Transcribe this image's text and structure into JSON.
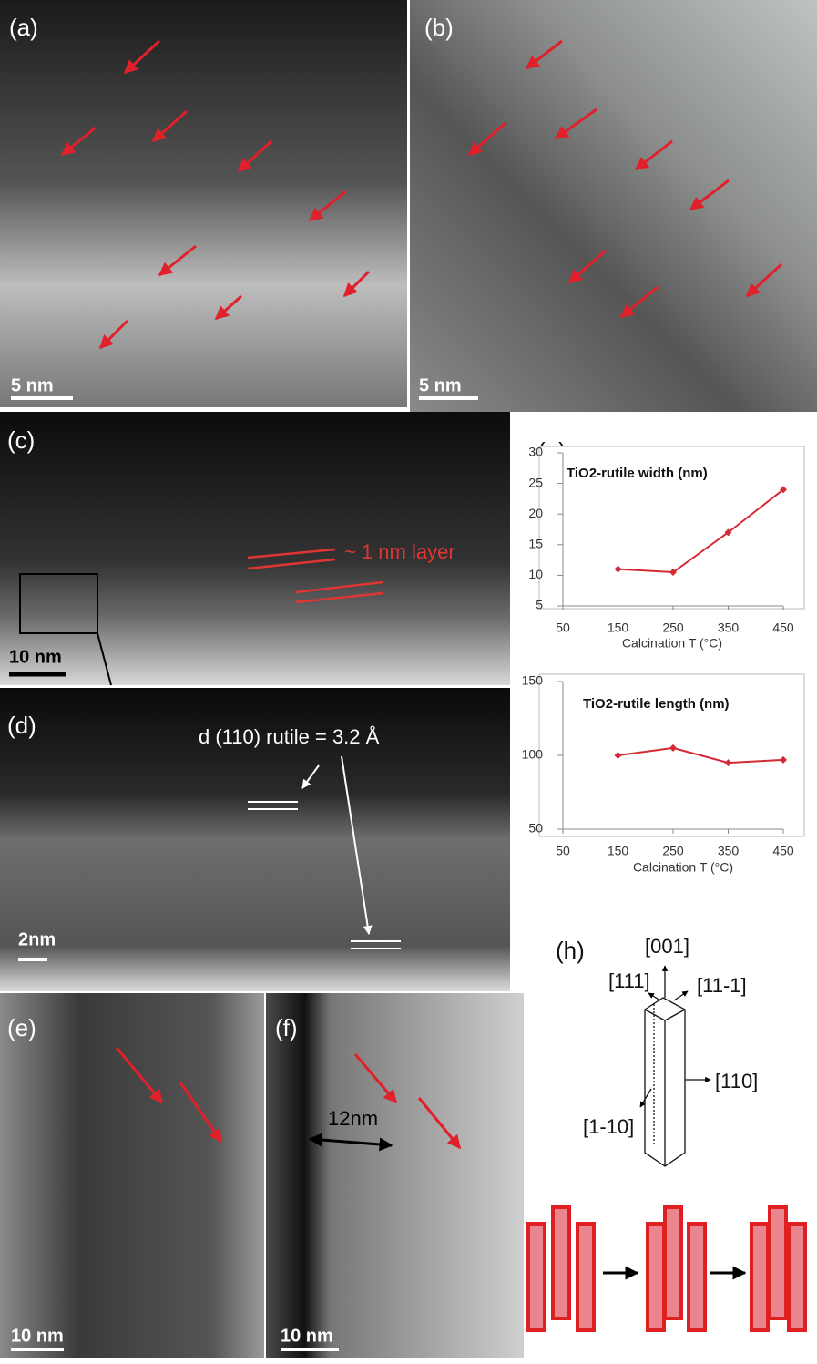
{
  "panels": [
    {
      "label": "(a)",
      "scale_bar": "5 nm"
    },
    {
      "label": "(b)",
      "scale_bar": "5 nm"
    },
    {
      "label": "(c)",
      "scale_bar": "10 nm",
      "annotation": "~ 1 nm layer"
    },
    {
      "label": "(d)",
      "scale_bar": "2nm",
      "annotation": "d (110) rutile = 3.2 Å"
    },
    {
      "label": "(e)",
      "scale_bar": "10 nm"
    },
    {
      "label": "(f)",
      "scale_bar": "10 nm",
      "annotation": "12nm"
    },
    {
      "label": "(g)"
    },
    {
      "label": "(h)"
    }
  ],
  "chart_data": [
    {
      "type": "line",
      "title": "TiO2-rutile width (nm)",
      "xlabel": "Calcination T (°C)",
      "x": [
        150,
        250,
        350,
        450
      ],
      "xlim": [
        50,
        450
      ],
      "xticks": [
        50,
        150,
        250,
        350,
        450
      ],
      "ylim": [
        5,
        30
      ],
      "yticks": [
        5,
        10,
        15,
        20,
        25,
        30
      ],
      "series": [
        {
          "color": "#d42a35",
          "values": [
            11,
            10.5,
            17,
            24
          ]
        }
      ]
    },
    {
      "type": "line",
      "title": "TiO2-rutile length (nm)",
      "xlabel": "Calcination T (°C)",
      "x": [
        150,
        250,
        350,
        450
      ],
      "xlim": [
        50,
        450
      ],
      "xticks": [
        50,
        150,
        250,
        350,
        450
      ],
      "ylim": [
        50,
        150
      ],
      "yticks": [
        50,
        100,
        150
      ],
      "series": [
        {
          "color": "#d42a35",
          "values": [
            100,
            105,
            95,
            97
          ]
        }
      ]
    }
  ],
  "diagram": {
    "directions": [
      "[001]",
      "[111]",
      "[11-1]",
      "[110]",
      "[1-10]"
    ]
  }
}
